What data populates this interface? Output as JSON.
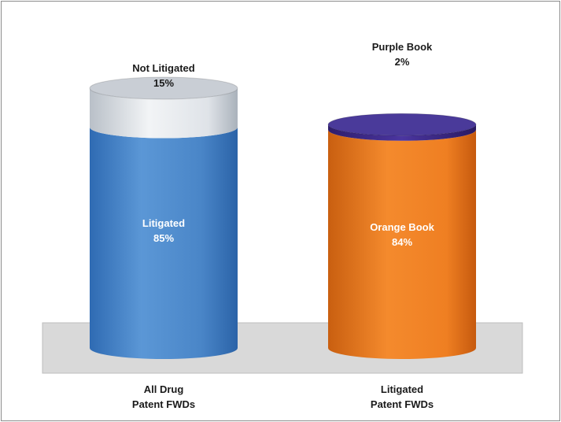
{
  "chart_data": {
    "type": "bar",
    "subtype": "stacked-100-cylinder",
    "categories": [
      "All Drug Patent FWDs",
      "Litigated Patent FWDs"
    ],
    "category_labels": [
      [
        "All Drug",
        "Patent FWDs"
      ],
      [
        "Litigated",
        "Patent FWDs"
      ]
    ],
    "series": [
      {
        "name": "Litigated",
        "values": [
          85,
          null
        ],
        "color": "#4a86c8",
        "label_lines": [
          "Litigated",
          "85%"
        ]
      },
      {
        "name": "Not Litigated",
        "values": [
          15,
          null
        ],
        "color": "#dfe3e8",
        "label_lines": [
          "Not Litigated",
          "15%"
        ]
      },
      {
        "name": "Orange Book",
        "values": [
          null,
          84
        ],
        "color": "#ef7f22",
        "label_lines": [
          "Orange Book",
          "84%"
        ]
      },
      {
        "name": "Purple Book",
        "values": [
          null,
          2
        ],
        "color": "#3f2a87",
        "label_lines": [
          "Purple Book",
          "2%"
        ]
      }
    ],
    "ylim": [
      0,
      100
    ],
    "grid": false,
    "legend": "none",
    "title": "",
    "xlabel": "",
    "ylabel": ""
  }
}
